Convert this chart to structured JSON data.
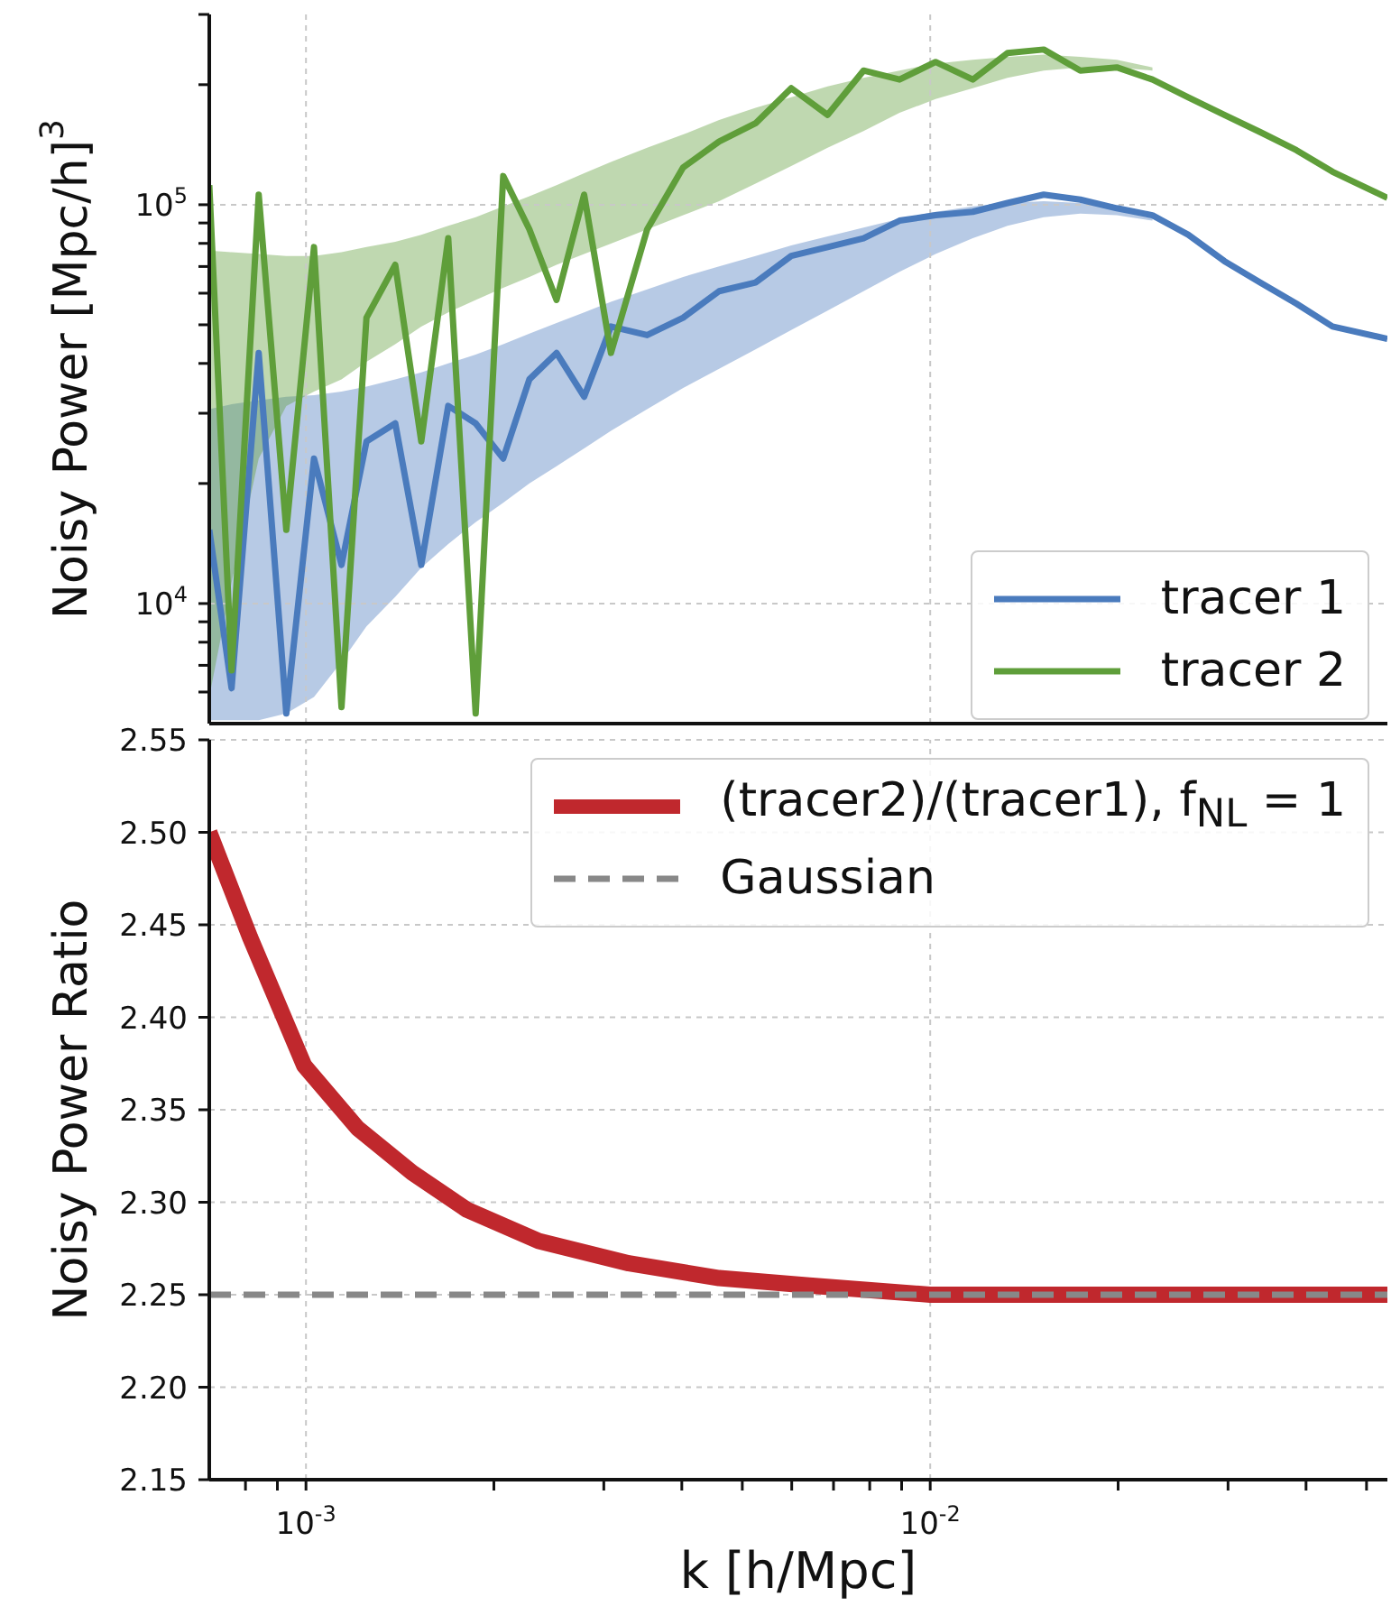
{
  "chart_data": [
    {
      "type": "line",
      "ylabel": "Noisy Power [Mpc/h]$^{3}$",
      "log": "xy",
      "grid": true,
      "legend": "bottom right",
      "tick_labels": "y",
      "xlim": [
        0.0007,
        0.054
      ],
      "xticks": [
        {
          "value": 0.001,
          "label": null
        },
        {
          "value": 0.01,
          "label": null
        }
      ],
      "ylim": [
        5000,
        300000
      ],
      "yticks": [
        {
          "value": 6000,
          "label": null
        },
        {
          "value": 7000,
          "label": null
        },
        {
          "value": 8000,
          "label": null
        },
        {
          "value": 9000,
          "label": null
        },
        {
          "value": 10000,
          "label": "10$^{4}$"
        },
        {
          "value": 20000,
          "label": null
        },
        {
          "value": 30000,
          "label": null
        },
        {
          "value": 40000,
          "label": null
        },
        {
          "value": 50000,
          "label": null
        },
        {
          "value": 60000,
          "label": null
        },
        {
          "value": 70000,
          "label": null
        },
        {
          "value": 80000,
          "label": null
        },
        {
          "value": 90000,
          "label": null
        },
        {
          "value": 100000,
          "label": "10$^{5}$"
        },
        {
          "value": 200000,
          "label": null
        },
        {
          "value": 300000,
          "label": null
        }
      ],
      "x": [
        0.0007,
        0.00076,
        0.00084,
        0.00093,
        0.00103,
        0.00114,
        0.00125,
        0.00139,
        0.00153,
        0.00169,
        0.00187,
        0.00207,
        0.00228,
        0.00252,
        0.00279,
        0.00308,
        0.00352,
        0.00402,
        0.00459,
        0.00525,
        0.00599,
        0.00685,
        0.00782,
        0.00893,
        0.0102,
        0.0117,
        0.0133,
        0.0152,
        0.0174,
        0.0199,
        0.0227,
        0.0259,
        0.0296,
        0.0338,
        0.0386,
        0.0441,
        0.054
      ],
      "series": [
        {
          "name": "tracer 1",
          "color": "#4a7bbd",
          "values": [
            15300,
            6130,
            42500,
            5300,
            23100,
            12500,
            25500,
            28300,
            12500,
            31300,
            28300,
            23100,
            36500,
            42500,
            33000,
            49500,
            47100,
            52100,
            60700,
            63800,
            74400,
            78300,
            82400,
            91200,
            94100,
            96000,
            101000,
            106000,
            103000,
            98000,
            94100,
            84100,
            72200,
            63800,
            56500,
            49500,
            46100
          ],
          "lower": [
            5100,
            5100,
            5100,
            5300,
            5830,
            7140,
            8760,
            10400,
            12300,
            14100,
            16000,
            17900,
            20000,
            22100,
            24500,
            27100,
            30700,
            34700,
            38800,
            43400,
            48500,
            54300,
            60700,
            67900,
            75200,
            82400,
            88500,
            93100,
            95000,
            94100,
            91200,
            null,
            null,
            null,
            null,
            null,
            null
          ],
          "upper": [
            30700,
            31600,
            32300,
            33000,
            33300,
            34000,
            35000,
            36500,
            38000,
            40000,
            42100,
            44700,
            47500,
            50500,
            53700,
            57100,
            61300,
            65900,
            70000,
            74400,
            79100,
            83300,
            87600,
            92200,
            96000,
            99000,
            101000,
            102000,
            101000,
            98000,
            94100,
            null,
            null,
            null,
            null,
            null,
            null
          ]
        },
        {
          "name": "tracer 2",
          "color": "#5f9e3a",
          "values": [
            112000,
            6800,
            106000,
            15300,
            78300,
            5500,
            52100,
            70700,
            25500,
            82400,
            5300,
            118000,
            86700,
            57700,
            106000,
            42500,
            86700,
            124000,
            144000,
            160000,
            196000,
            168000,
            217000,
            206000,
            228000,
            206000,
            240000,
            245000,
            217000,
            221000,
            206000,
            186000,
            168000,
            152000,
            137000,
            121000,
            104000
          ],
          "lower": [
            5830,
            11300,
            23100,
            31300,
            34000,
            36500,
            40400,
            44700,
            49500,
            53700,
            57700,
            61900,
            65900,
            70700,
            75200,
            79900,
            86700,
            94100,
            102000,
            113000,
            125000,
            139000,
            153000,
            170000,
            184000,
            196000,
            208000,
            217000,
            221000,
            221000,
            217000,
            null,
            null,
            null,
            null,
            null,
            null
          ],
          "upper": [
            76700,
            76000,
            75200,
            74400,
            74400,
            76000,
            78300,
            80700,
            84100,
            88500,
            93100,
            99000,
            105000,
            112000,
            120000,
            128000,
            139000,
            150000,
            163000,
            175000,
            186000,
            198000,
            208000,
            217000,
            226000,
            231000,
            235000,
            238000,
            235000,
            231000,
            221000,
            null,
            null,
            null,
            null,
            null,
            null
          ]
        }
      ]
    },
    {
      "type": "line",
      "ylabel": "Noisy Power Ratio",
      "xlabel": "k [h/Mpc]",
      "log": "x",
      "grid": true,
      "legend": "top right",
      "xlim": [
        0.0007,
        0.054
      ],
      "xticks": [
        {
          "value": 0.0008,
          "label": null
        },
        {
          "value": 0.0009,
          "label": null
        },
        {
          "value": 0.001,
          "label": "10$^{-3}$"
        },
        {
          "value": 0.002,
          "label": null
        },
        {
          "value": 0.003,
          "label": null
        },
        {
          "value": 0.004,
          "label": null
        },
        {
          "value": 0.005,
          "label": null
        },
        {
          "value": 0.006,
          "label": null
        },
        {
          "value": 0.007,
          "label": null
        },
        {
          "value": 0.008,
          "label": null
        },
        {
          "value": 0.009,
          "label": null
        },
        {
          "value": 0.01,
          "label": "10$^{-2}$"
        },
        {
          "value": 0.02,
          "label": null
        },
        {
          "value": 0.03,
          "label": null
        },
        {
          "value": 0.04,
          "label": null
        },
        {
          "value": 0.05,
          "label": null
        }
      ],
      "ylim": [
        2.15,
        2.55
      ],
      "yticks": [
        {
          "value": 2.15,
          "label": "2.15"
        },
        {
          "value": 2.2,
          "label": "2.20"
        },
        {
          "value": 2.25,
          "label": "2.25"
        },
        {
          "value": 2.3,
          "label": "2.30"
        },
        {
          "value": 2.35,
          "label": "2.35"
        },
        {
          "value": 2.4,
          "label": "2.40"
        },
        {
          "value": 2.45,
          "label": "2.45"
        },
        {
          "value": 2.5,
          "label": "2.50"
        },
        {
          "value": 2.55,
          "label": "2.55"
        }
      ],
      "series": [
        {
          "name": "(tracer2)/(tracer1), f$_{NL}$ = 1",
          "color": "#c0282d",
          "x": [
            0.0007,
            0.000814,
            0.000993,
            0.00121,
            0.00148,
            0.00181,
            0.00236,
            0.00329,
            0.00459,
            0.0064,
            0.01,
            0.0174,
            0.054
          ],
          "values": [
            2.5,
            2.443,
            2.374,
            2.34,
            2.316,
            2.296,
            2.279,
            2.267,
            2.259,
            2.255,
            2.25,
            2.25,
            2.25
          ]
        },
        {
          "name": "Gaussian",
          "color": "#888888",
          "line_style": "dashed",
          "x": [
            0.0007,
            0.054
          ],
          "values": [
            2.25,
            2.25
          ]
        }
      ]
    }
  ]
}
